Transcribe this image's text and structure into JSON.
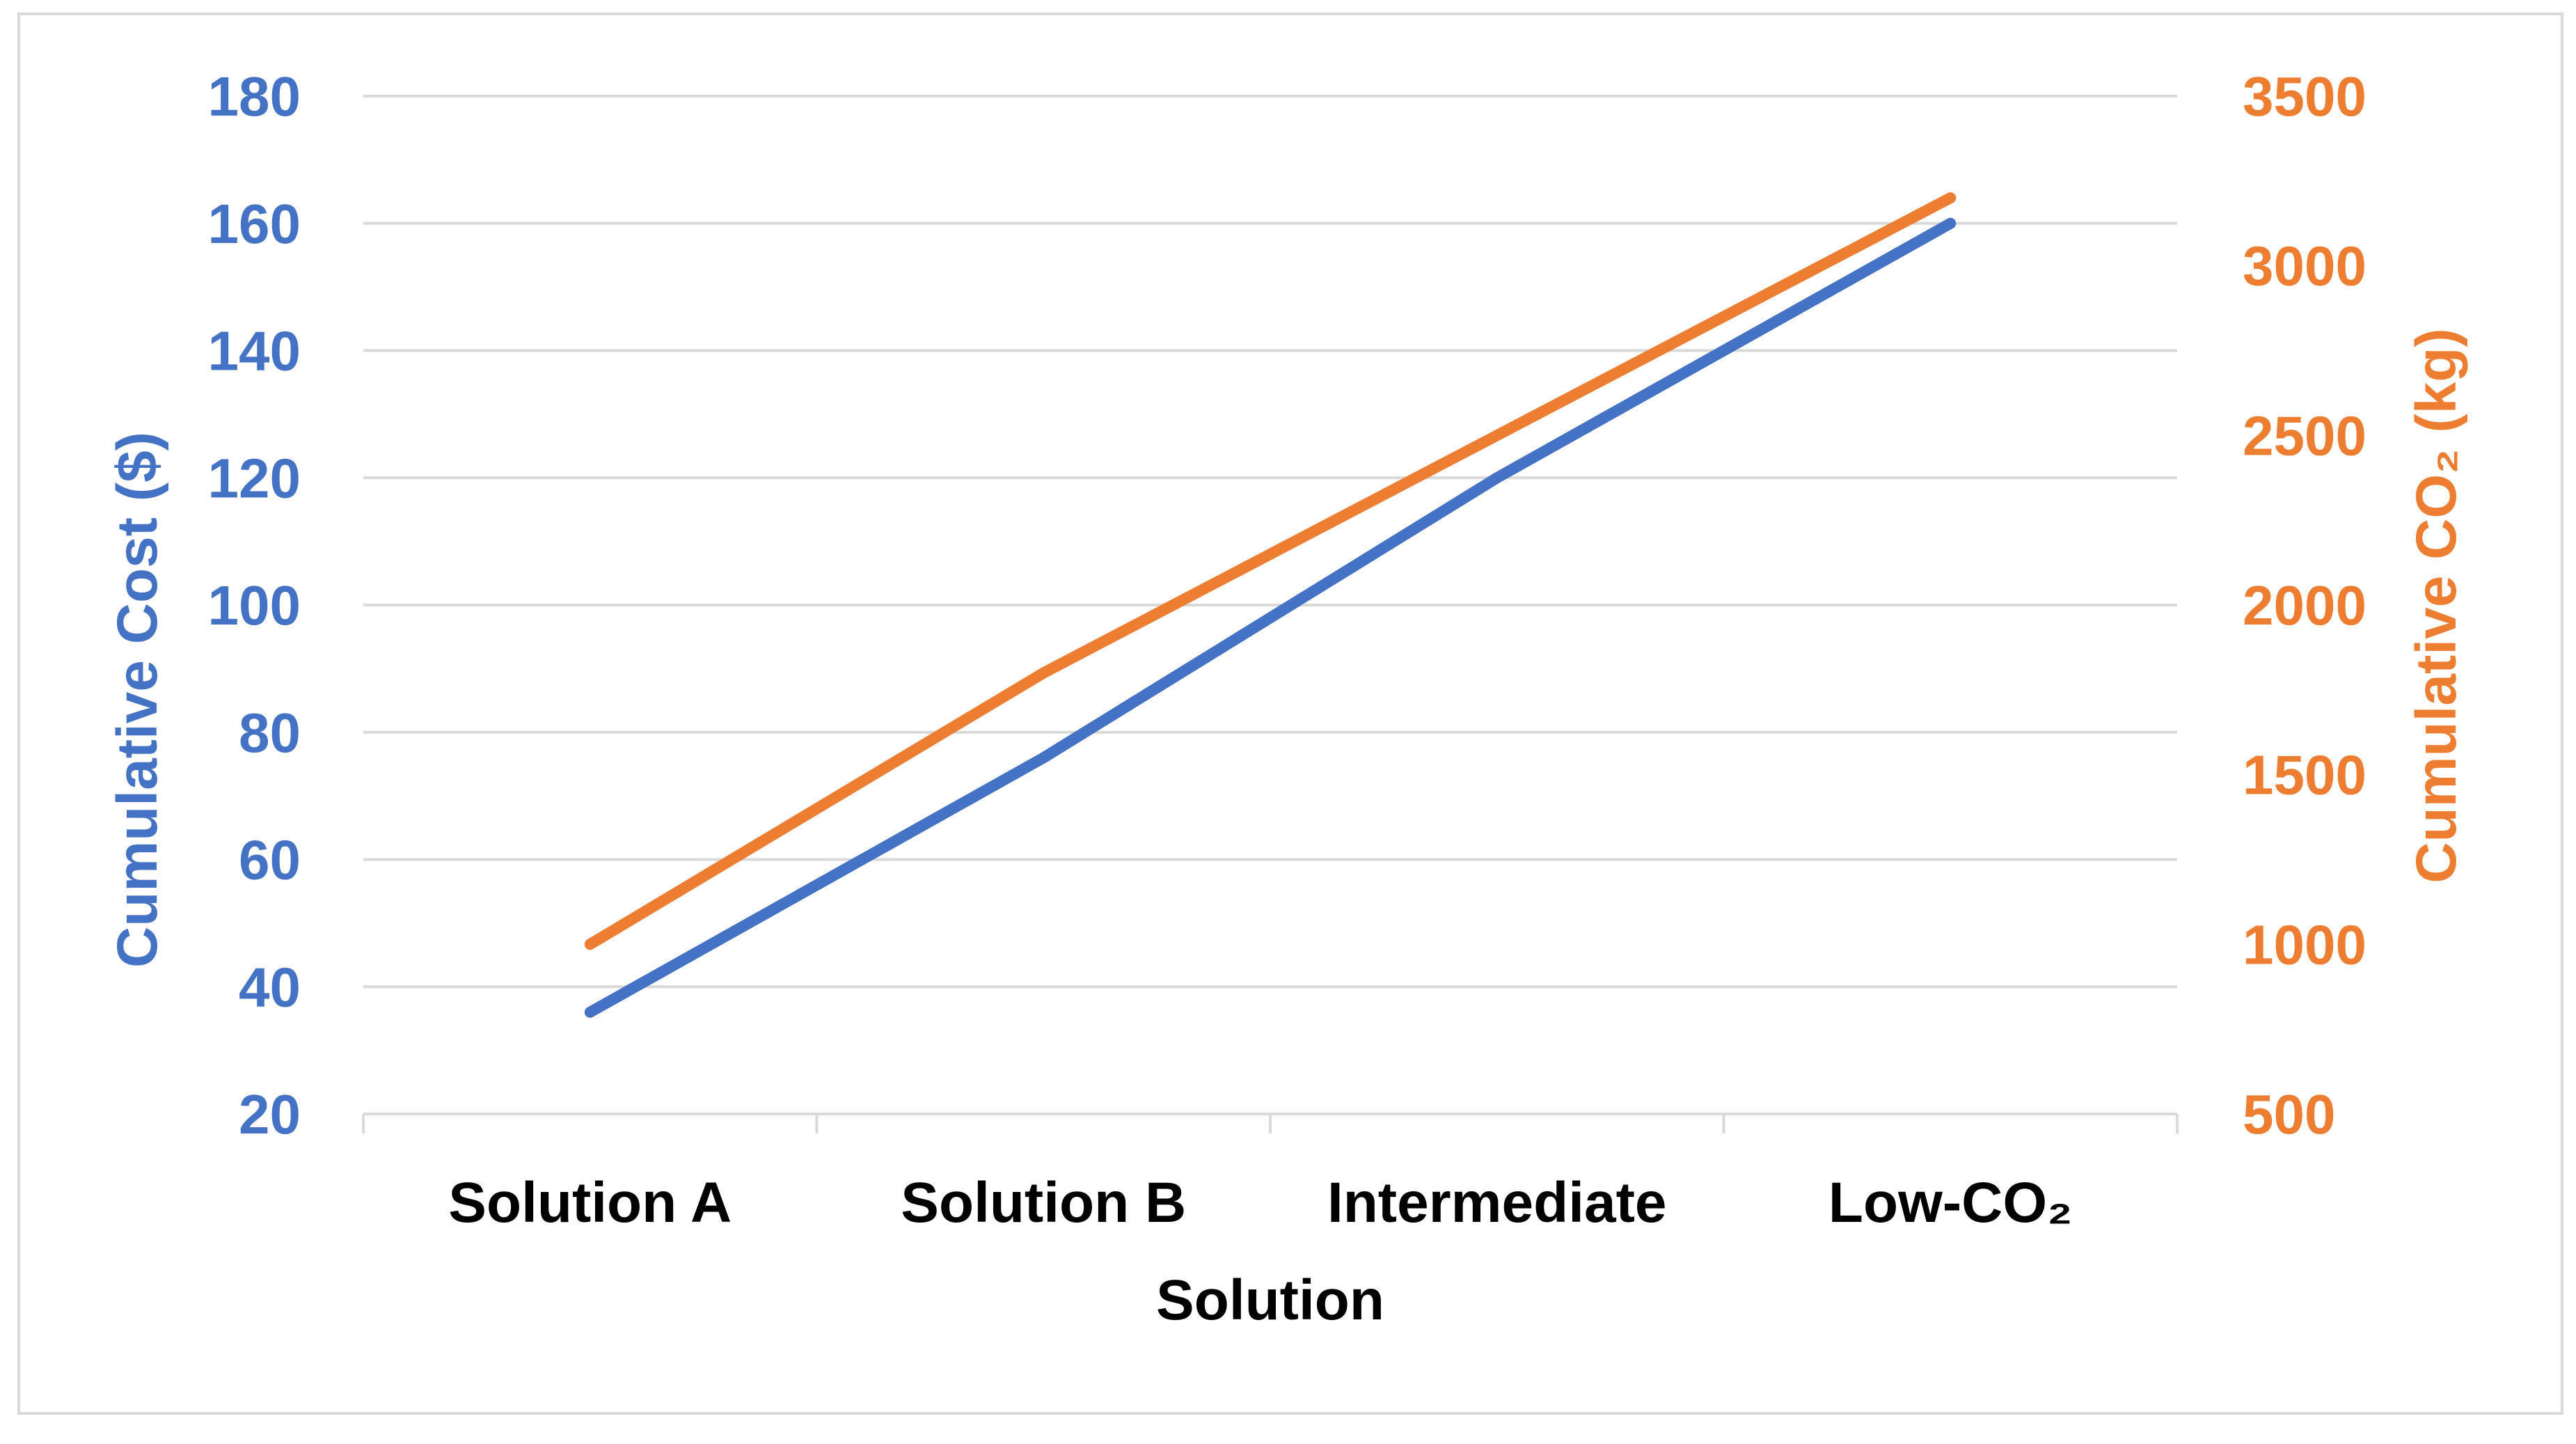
{
  "chart_data": {
    "type": "line",
    "categories": [
      "Solution A",
      "Solution B",
      "Intermediate",
      "Low-CO₂"
    ],
    "xlabel": "Solution",
    "series": [
      {
        "axis": "left",
        "color": "#4472C4",
        "values": [
          36,
          76,
          120,
          160
        ]
      },
      {
        "axis": "right",
        "color": "#ED7D31",
        "values": [
          1000,
          1800,
          2500,
          3200
        ]
      }
    ],
    "y_left": {
      "label": "Cumulative Cost ($)",
      "ylim": [
        20,
        180
      ],
      "ticks": [
        "20",
        "40",
        "60",
        "80",
        "100",
        "120",
        "140",
        "160",
        "180"
      ],
      "color": "#4472C4"
    },
    "y_right": {
      "label": "Cumulative CO₂ (kg)",
      "ylim": [
        500,
        3500
      ],
      "ticks": [
        "500",
        "1000",
        "1500",
        "2000",
        "2500",
        "3000",
        "3500"
      ],
      "color": "#ED7D31"
    },
    "grid": true,
    "legend": "none",
    "colors": {
      "axis_text": "#000000",
      "grid": "#D9D9D9",
      "border": "#D9D9D9"
    }
  }
}
